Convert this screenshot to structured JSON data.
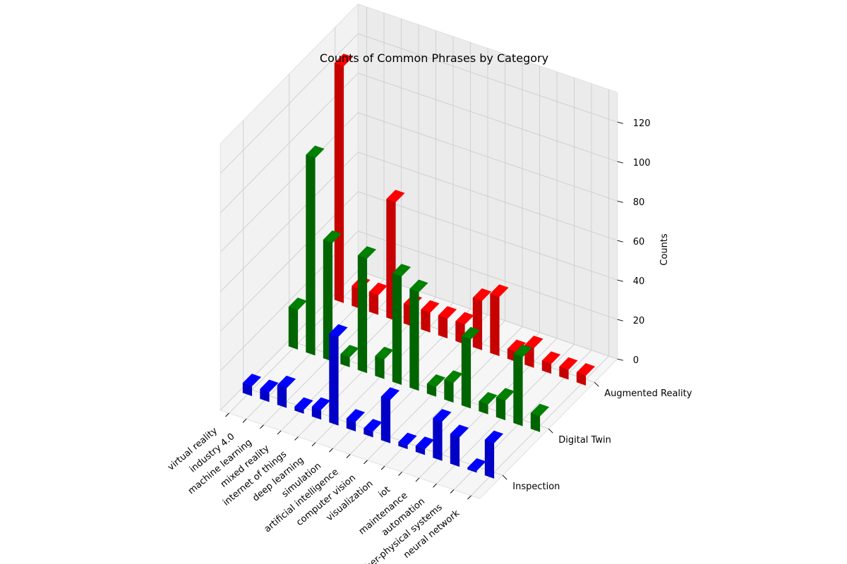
{
  "chart_data": {
    "type": "bar3d",
    "title": "Counts of Common Phrases by Category",
    "xlabel": "",
    "ylabel": "",
    "zlabel": "Counts",
    "zlim": [
      0,
      125
    ],
    "z_ticks": [
      0,
      20,
      40,
      60,
      80,
      100,
      120
    ],
    "grid": true,
    "phrases": [
      "virtual reality",
      "industry 4.0",
      "machine learning",
      "mixed reality",
      "internet of things",
      "deep learning",
      "simulation",
      "artificial intelligence",
      "computer vision",
      "visualization",
      "iot",
      "maintenance",
      "automation",
      "cyber-physical systems",
      "neural network"
    ],
    "series": [
      {
        "name": "Inspection",
        "color": "#0000ff",
        "values": [
          5,
          5,
          10,
          2,
          5,
          45,
          5,
          3,
          22,
          2,
          3,
          20,
          15,
          1,
          18
        ]
      },
      {
        "name": "Digital Twin",
        "color": "#008000",
        "values": [
          20,
          100,
          60,
          5,
          58,
          10,
          55,
          50,
          5,
          10,
          35,
          5,
          10,
          35,
          8
        ]
      },
      {
        "name": "Augmented Reality",
        "color": "#ff0000",
        "values": [
          120,
          10,
          10,
          60,
          10,
          10,
          10,
          10,
          25,
          30,
          5,
          10,
          5,
          5,
          5
        ]
      }
    ]
  }
}
